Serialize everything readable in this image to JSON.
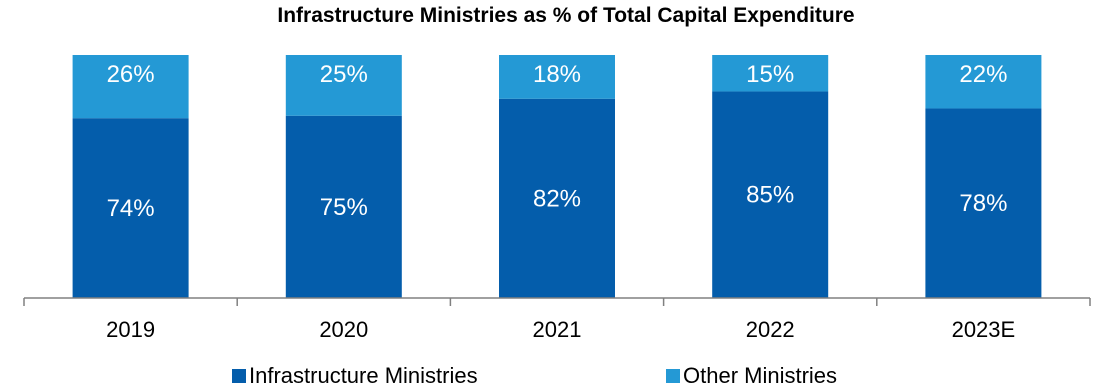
{
  "chart_data": {
    "type": "bar",
    "stacked": true,
    "title": "Infrastructure Ministries as % of Total Capital Expenditure",
    "categories": [
      "2019",
      "2020",
      "2021",
      "2022",
      "2023E"
    ],
    "series": [
      {
        "name": "Infrastructure Ministries",
        "values": [
          74,
          75,
          82,
          85,
          78
        ],
        "labels": [
          "74%",
          "75%",
          "82%",
          "85%",
          "78%"
        ],
        "color": "#045DAB"
      },
      {
        "name": "Other Ministries",
        "values": [
          26,
          25,
          18,
          15,
          22
        ],
        "labels": [
          "26%",
          "25%",
          "18%",
          "15%",
          "22%"
        ],
        "color": "#2499D5"
      }
    ],
    "ylim": [
      0,
      100
    ],
    "grid": false,
    "legend": "bottom"
  }
}
